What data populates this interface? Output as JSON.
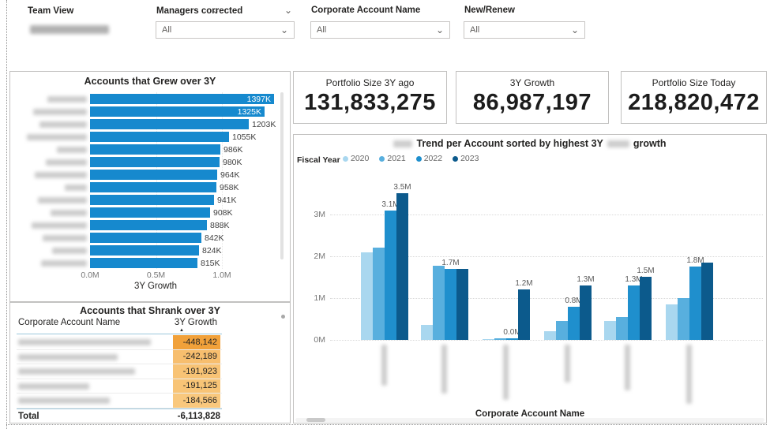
{
  "filters": {
    "slicers": [
      {
        "label": "Team View",
        "value": "",
        "value_redacted": true
      },
      {
        "label": "Managers corrected",
        "value": "All"
      },
      {
        "label": "Corporate Account Name",
        "value": "All"
      },
      {
        "label": "New/Renew",
        "value": "All"
      }
    ]
  },
  "kpis": [
    {
      "label": "Portfolio Size 3Y ago",
      "value": "131,833,275"
    },
    {
      "label": "3Y Growth",
      "value": "86,987,197"
    },
    {
      "label": "Portfolio Size Today",
      "value": "218,820,472"
    }
  ],
  "chart_data": [
    {
      "type": "bar",
      "orientation": "horizontal",
      "title": "Accounts that Grew over 3Y",
      "xlabel": "3Y Growth",
      "x_ticks": [
        "0.0M",
        "0.5M",
        "1.0M"
      ],
      "xlim_m": [
        0,
        1.5
      ],
      "categories_redacted": true,
      "category_blur_widths": [
        50,
        68,
        60,
        76,
        38,
        52,
        66,
        28,
        62,
        46,
        70,
        56,
        44,
        58
      ],
      "values_k": [
        1397,
        1325,
        1203,
        1055,
        986,
        980,
        964,
        958,
        941,
        908,
        888,
        842,
        824,
        815
      ],
      "labels": [
        "1397K",
        "1325K",
        "1203K",
        "1055K",
        "986K",
        "980K",
        "964K",
        "958K",
        "941K",
        "908K",
        "888K",
        "842K",
        "824K",
        "815K"
      ],
      "label_inside_count": 2
    },
    {
      "type": "table",
      "title": "Accounts that Shrank over 3Y",
      "columns": [
        "Corporate Account Name",
        "3Y Growth"
      ],
      "sort": {
        "column": "3Y Growth",
        "direction": "ascending"
      },
      "rows_redacted_names": true,
      "name_blur_widths": [
        168,
        126,
        148,
        90,
        116
      ],
      "values": [
        "-448,142",
        "-242,189",
        "-191,923",
        "-191,125",
        "-184,566"
      ],
      "cell_colors": [
        "#F1A13A",
        "#F7BE6E",
        "#F8C375",
        "#F8C476",
        "#F9C87D"
      ],
      "total_label": "Total",
      "total_value": "-6,113,828"
    },
    {
      "type": "bar",
      "orientation": "vertical",
      "title_main": "Trend per Account sorted by highest 3Y",
      "title_tail": "growth",
      "title_has_redacted_segments": true,
      "legend_title": "Fiscal Year",
      "series": [
        "2020",
        "2021",
        "2022",
        "2023"
      ],
      "series_colors": [
        "#A9D7EF",
        "#58AFDE",
        "#1F8FCD",
        "#0C5A8C"
      ],
      "xlabel": "Corporate Account Name",
      "categories_redacted": true,
      "y_ticks": [
        "0M",
        "1M",
        "2M",
        "3M"
      ],
      "ylim_m": [
        0,
        3.6
      ],
      "groups": [
        {
          "values_m": [
            2.1,
            2.2,
            3.1,
            3.5
          ],
          "labels": [
            null,
            null,
            "3.1M",
            "3.5M"
          ]
        },
        {
          "values_m": [
            0.35,
            1.78,
            1.7,
            1.7
          ],
          "labels": [
            null,
            null,
            "1.7M",
            null
          ]
        },
        {
          "values_m": [
            0.02,
            0.03,
            0.04,
            1.2
          ],
          "labels": [
            null,
            null,
            "0.0M",
            "1.2M"
          ]
        },
        {
          "values_m": [
            0.2,
            0.45,
            0.8,
            1.3
          ],
          "labels": [
            null,
            null,
            "0.8M",
            "1.3M"
          ]
        },
        {
          "values_m": [
            0.45,
            0.55,
            1.3,
            1.5
          ],
          "labels": [
            null,
            null,
            "1.3M",
            "1.5M"
          ]
        },
        {
          "values_m": [
            0.85,
            1.0,
            1.75,
            1.85
          ],
          "labels": [
            null,
            null,
            "1.8M",
            null
          ]
        }
      ],
      "category_blur_heights": [
        52,
        62,
        70,
        48,
        58,
        75
      ]
    }
  ],
  "colors": {
    "grew_bar": "#1689CE",
    "table_header_line": "#9CC7DB",
    "negative_value_text": "#252423"
  }
}
